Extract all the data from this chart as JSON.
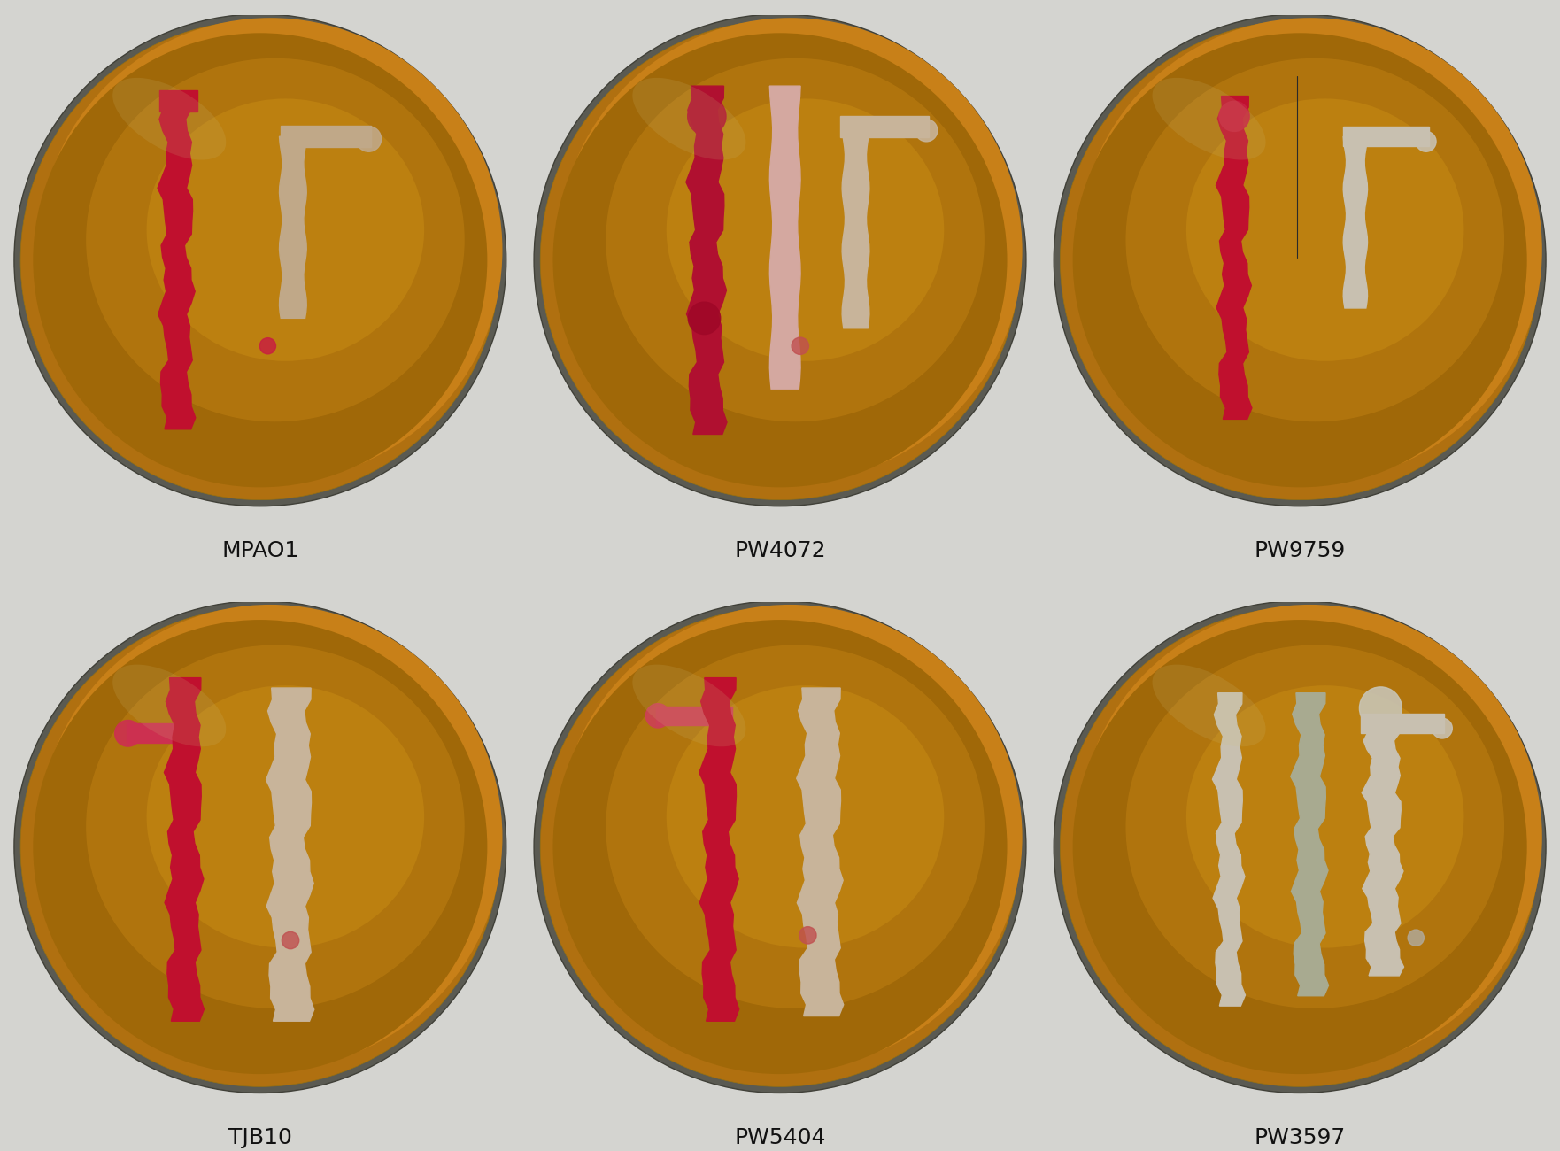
{
  "labels": [
    [
      "MPAO1",
      "PW4072",
      "PW9759"
    ],
    [
      "TJB10",
      "PW5404",
      "PW3597"
    ]
  ],
  "label_fontsize": 18,
  "fig_width": 17.62,
  "fig_height": 13.0,
  "bg_color": "#d4d4d0",
  "label_area_color": "#ffffff",
  "dish_rim_outer": "#6a6a62",
  "dish_rim_inner": "#b87820",
  "agar_center": "#c89018",
  "agar_edge": "#9a6408",
  "agar_dark_edge": "#7a4a04",
  "colony_red": "#c0102e",
  "colony_pink_light": "#d4a8a0",
  "colony_beige": "#c8b49a",
  "colony_tan": "#c0a888",
  "colony_gray": "#c8c0b0",
  "colony_greenish": "#9aaa80"
}
